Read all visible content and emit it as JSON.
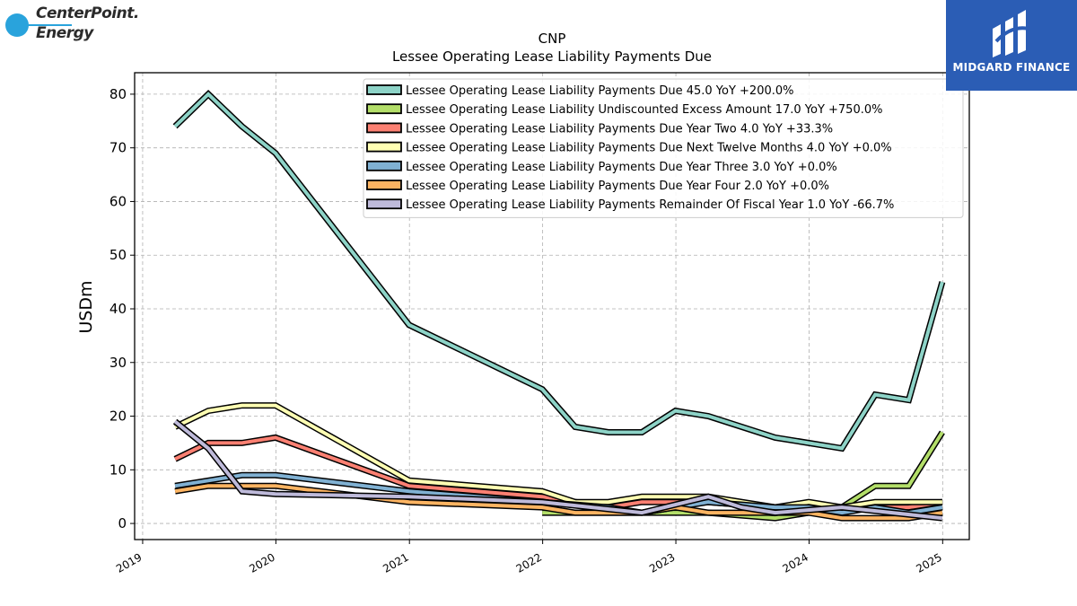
{
  "branding": {
    "left_logo_line1": "CenterPoint.",
    "left_logo_line2": "Energy",
    "right_logo_text": "MIDGARD FINANCE"
  },
  "chart_data": {
    "type": "line",
    "title": "CNP",
    "subtitle": "Lessee Operating Lease Liability Payments Due",
    "ylabel": "USDm",
    "xlabel": "",
    "xlim": [
      "2018-12-10",
      "2025-03-15"
    ],
    "ylim": [
      -3,
      84
    ],
    "yticks": [
      0,
      10,
      20,
      30,
      40,
      50,
      60,
      70,
      80
    ],
    "xticks": [
      {
        "label": "2019",
        "date": "2019-01-01"
      },
      {
        "label": "2020",
        "date": "2020-01-01"
      },
      {
        "label": "2021",
        "date": "2021-01-01"
      },
      {
        "label": "2022",
        "date": "2022-01-01"
      },
      {
        "label": "2023",
        "date": "2023-01-01"
      },
      {
        "label": "2024",
        "date": "2024-01-01"
      },
      {
        "label": "2025",
        "date": "2025-01-01"
      }
    ],
    "grid": true,
    "legend_position": "top-right",
    "series": [
      {
        "name": "Lessee Operating Lease Liability Payments Due  45.0 YoY +200.0%",
        "color": "#8dd3c7",
        "points": [
          [
            "2019-03-31",
            74
          ],
          [
            "2019-06-30",
            80
          ],
          [
            "2019-09-30",
            74
          ],
          [
            "2019-12-31",
            69
          ],
          [
            "2020-12-31",
            37
          ],
          [
            "2021-12-31",
            25
          ],
          [
            "2022-03-31",
            18
          ],
          [
            "2022-06-30",
            17
          ],
          [
            "2022-09-30",
            17
          ],
          [
            "2022-12-31",
            21
          ],
          [
            "2023-03-31",
            20
          ],
          [
            "2023-09-30",
            16
          ],
          [
            "2024-03-31",
            14
          ],
          [
            "2024-06-30",
            24
          ],
          [
            "2024-09-30",
            23
          ],
          [
            "2024-12-31",
            45
          ]
        ]
      },
      {
        "name": "Lessee Operating Lease Liability Undiscounted Excess Amount  17.0 YoY +750.0%",
        "color": "#b3de69",
        "points": [
          [
            "2021-12-31",
            2
          ],
          [
            "2022-03-31",
            2
          ],
          [
            "2022-06-30",
            2
          ],
          [
            "2022-09-30",
            2
          ],
          [
            "2022-12-31",
            2
          ],
          [
            "2023-03-31",
            2
          ],
          [
            "2023-09-30",
            1
          ],
          [
            "2023-12-31",
            2
          ],
          [
            "2024-03-31",
            3
          ],
          [
            "2024-06-30",
            7
          ],
          [
            "2024-09-30",
            7
          ],
          [
            "2024-12-31",
            17
          ]
        ]
      },
      {
        "name": "Lessee Operating Lease Liability Payments Due Year Two  4.0 YoY +33.3%",
        "color": "#fb8072",
        "points": [
          [
            "2019-03-31",
            12
          ],
          [
            "2019-06-30",
            15
          ],
          [
            "2019-09-30",
            15
          ],
          [
            "2019-12-31",
            16
          ],
          [
            "2020-12-31",
            7
          ],
          [
            "2021-12-31",
            5
          ],
          [
            "2022-06-30",
            3
          ],
          [
            "2022-09-30",
            4
          ],
          [
            "2022-12-31",
            4
          ],
          [
            "2023-03-31",
            4
          ],
          [
            "2023-09-30",
            3
          ],
          [
            "2023-12-31",
            3
          ],
          [
            "2024-03-31",
            3
          ],
          [
            "2024-06-30",
            3
          ],
          [
            "2024-09-30",
            3
          ],
          [
            "2024-12-31",
            4
          ]
        ]
      },
      {
        "name": "Lessee Operating Lease Liability Payments Due Next Twelve Months  4.0 YoY +0.0%",
        "color": "#ffffb3",
        "points": [
          [
            "2019-03-31",
            18
          ],
          [
            "2019-06-30",
            21
          ],
          [
            "2019-09-30",
            22
          ],
          [
            "2019-12-31",
            22
          ],
          [
            "2020-12-31",
            8
          ],
          [
            "2021-12-31",
            6
          ],
          [
            "2022-03-31",
            4
          ],
          [
            "2022-06-30",
            4
          ],
          [
            "2022-09-30",
            5
          ],
          [
            "2022-12-31",
            5
          ],
          [
            "2023-03-31",
            5
          ],
          [
            "2023-09-30",
            3
          ],
          [
            "2023-12-31",
            4
          ],
          [
            "2024-03-31",
            3
          ],
          [
            "2024-06-30",
            4
          ],
          [
            "2024-09-30",
            4
          ],
          [
            "2024-12-31",
            4
          ]
        ]
      },
      {
        "name": "Lessee Operating Lease Liability Payments Due Year Three  3.0 YoY +0.0%",
        "color": "#80b1d3",
        "points": [
          [
            "2019-03-31",
            7
          ],
          [
            "2019-06-30",
            8
          ],
          [
            "2019-09-30",
            9
          ],
          [
            "2019-12-31",
            9
          ],
          [
            "2020-12-31",
            6
          ],
          [
            "2021-12-31",
            4
          ],
          [
            "2022-06-30",
            3
          ],
          [
            "2022-09-30",
            2
          ],
          [
            "2022-12-31",
            3
          ],
          [
            "2023-03-31",
            4
          ],
          [
            "2023-09-30",
            3
          ],
          [
            "2023-12-31",
            3
          ],
          [
            "2024-03-31",
            2
          ],
          [
            "2024-06-30",
            3
          ],
          [
            "2024-09-30",
            2
          ],
          [
            "2024-12-31",
            3
          ]
        ]
      },
      {
        "name": "Lessee Operating Lease Liability Payments Due Year Four  2.0 YoY +0.0%",
        "color": "#fdb462",
        "points": [
          [
            "2019-03-31",
            6
          ],
          [
            "2019-06-30",
            7
          ],
          [
            "2019-09-30",
            7
          ],
          [
            "2019-12-31",
            7
          ],
          [
            "2020-12-31",
            4
          ],
          [
            "2021-12-31",
            3
          ],
          [
            "2022-03-31",
            2
          ],
          [
            "2022-06-30",
            2
          ],
          [
            "2022-09-30",
            2
          ],
          [
            "2022-12-31",
            3
          ],
          [
            "2023-03-31",
            2
          ],
          [
            "2023-09-30",
            2
          ],
          [
            "2023-12-31",
            2
          ],
          [
            "2024-03-31",
            1
          ],
          [
            "2024-06-30",
            1
          ],
          [
            "2024-09-30",
            1
          ],
          [
            "2024-12-31",
            2
          ]
        ]
      },
      {
        "name": "Lessee Operating Lease Liability Payments Remainder Of Fiscal Year  1.0 YoY -66.7%",
        "color": "#bebada",
        "points": [
          [
            "2019-03-31",
            19
          ],
          [
            "2019-06-30",
            14
          ],
          [
            "2019-09-30",
            6
          ],
          [
            "2019-12-31",
            5.5
          ],
          [
            "2020-12-31",
            5
          ],
          [
            "2021-12-31",
            4
          ],
          [
            "2022-09-30",
            2
          ],
          [
            "2023-03-31",
            5
          ],
          [
            "2023-06-30",
            3
          ],
          [
            "2023-09-30",
            2
          ],
          [
            "2024-03-31",
            3
          ],
          [
            "2024-12-31",
            1
          ]
        ]
      }
    ]
  }
}
